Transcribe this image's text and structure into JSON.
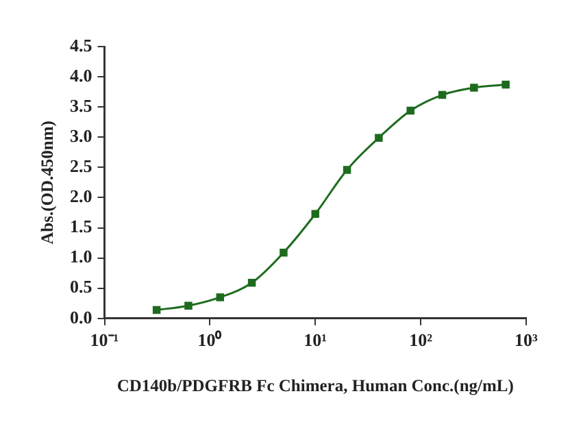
{
  "chart_data": {
    "type": "line",
    "xlabel": "CD140b/PDGFRB Fc Chimera, Human Conc.(ng/mL)",
    "ylabel": "Abs.(OD.450nm)",
    "x": [
      0.3125,
      0.625,
      1.25,
      2.5,
      5,
      10,
      20,
      40,
      80,
      160,
      320,
      640
    ],
    "series": [
      {
        "color": "#1e6b1e",
        "values": [
          0.14,
          0.21,
          0.35,
          0.59,
          1.09,
          1.73,
          2.46,
          2.99,
          3.44,
          3.7,
          3.82,
          3.87
        ]
      }
    ],
    "log": "x",
    "xlim": [
      0.1,
      1000
    ],
    "xticks": [
      {
        "value": 0.1,
        "label": "10⁻¹"
      },
      {
        "value": 1,
        "label": "10⁰"
      },
      {
        "value": 10,
        "label": "10¹"
      },
      {
        "value": 100,
        "label": "10²"
      },
      {
        "value": 1000,
        "label": "10³"
      }
    ],
    "ylim": [
      0,
      4.5
    ],
    "yticks": [
      {
        "value": 0,
        "label": "0.0"
      },
      {
        "value": 0.5,
        "label": "0.5"
      },
      {
        "value": 1,
        "label": "1.0"
      },
      {
        "value": 1.5,
        "label": "1.5"
      },
      {
        "value": 2,
        "label": "2.0"
      },
      {
        "value": 2.5,
        "label": "2.5"
      },
      {
        "value": 3,
        "label": "3.0"
      },
      {
        "value": 3.5,
        "label": "3.5"
      },
      {
        "value": 4,
        "label": "4.0"
      },
      {
        "value": 4.5,
        "label": "4.5"
      }
    ],
    "grid": false,
    "legend": false,
    "marker": "square",
    "line_style": "solid"
  }
}
